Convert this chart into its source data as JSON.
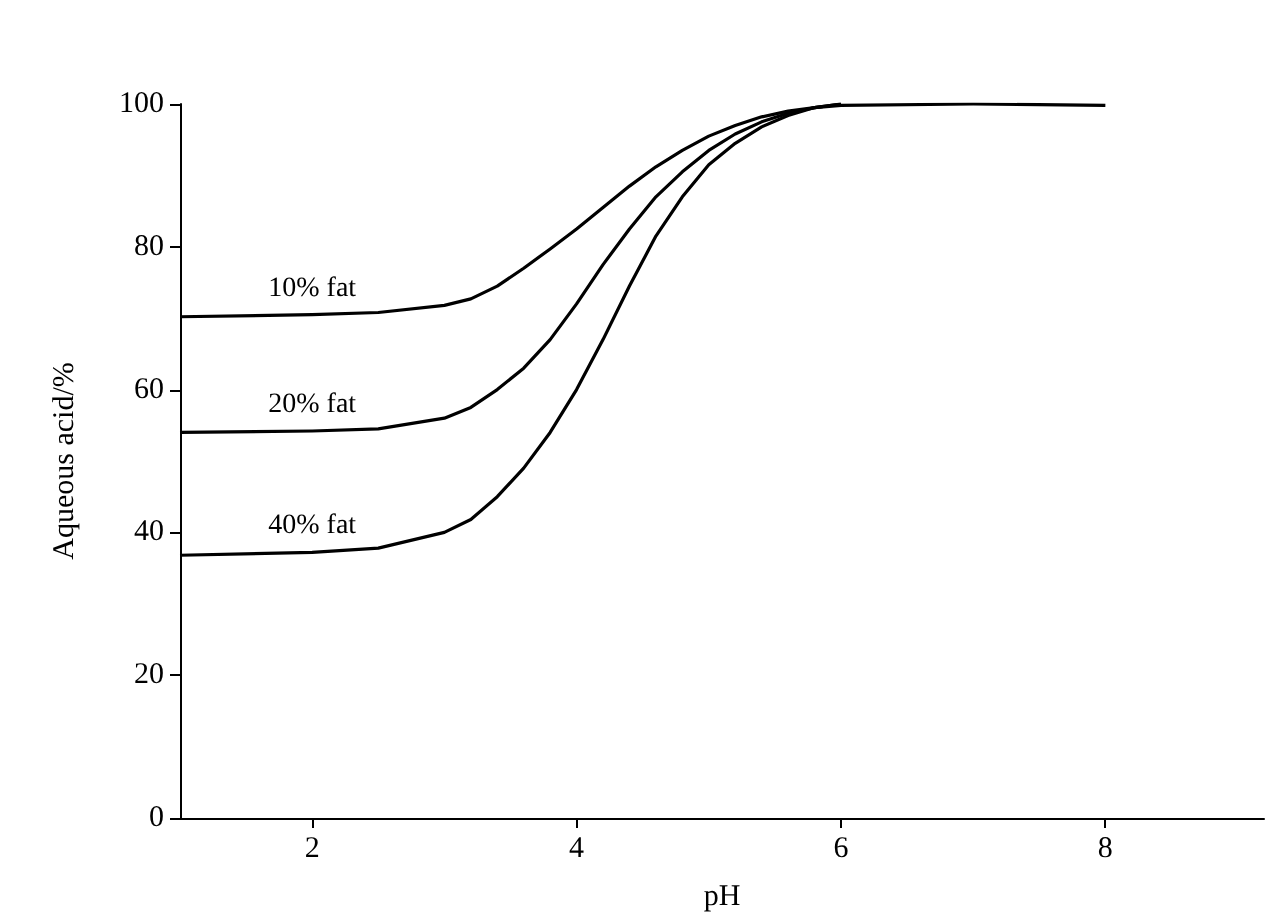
{
  "chart_data": {
    "type": "line",
    "xlabel": "pH",
    "ylabel": "Aqueous acid/%",
    "xlim": [
      1,
      9.2
    ],
    "xticks": [
      2,
      4,
      6,
      8
    ],
    "ylim": [
      0,
      100
    ],
    "yticks": [
      0,
      20,
      40,
      60,
      80,
      100
    ],
    "grid": false,
    "marker": "none",
    "line_style": "solid",
    "series": [
      {
        "name": "10% fat",
        "color": "#000000",
        "x": [
          1,
          2,
          2.5,
          3,
          3.2,
          3.4,
          3.6,
          3.8,
          4,
          4.2,
          4.4,
          4.6,
          4.8,
          5,
          5.2,
          5.4,
          5.6,
          5.8,
          6,
          7,
          8
        ],
        "values": [
          70.2,
          70.5,
          70.8,
          71.8,
          72.7,
          74.5,
          77,
          79.7,
          82.5,
          85.5,
          88.5,
          91.2,
          93.5,
          95.5,
          97,
          98.2,
          99,
          99.5,
          99.8,
          100,
          99.8
        ]
      },
      {
        "name": "20% fat",
        "color": "#000000",
        "x": [
          1,
          2,
          2.5,
          3,
          3.2,
          3.4,
          3.6,
          3.8,
          4,
          4.2,
          4.4,
          4.6,
          4.8,
          5,
          5.2,
          5.4,
          5.6,
          5.8,
          6
        ],
        "values": [
          54,
          54.2,
          54.5,
          56,
          57.5,
          60,
          63,
          67,
          72,
          77.5,
          82.5,
          87,
          90.5,
          93.5,
          95.8,
          97.5,
          98.7,
          99.5,
          100
        ]
      },
      {
        "name": "40% fat",
        "color": "#000000",
        "x": [
          1,
          2,
          2.5,
          3,
          3.2,
          3.4,
          3.6,
          3.8,
          4,
          4.2,
          4.4,
          4.6,
          4.8,
          5,
          5.2,
          5.4,
          5.6,
          5.8,
          6
        ],
        "values": [
          36.8,
          37.2,
          37.8,
          40,
          41.8,
          45,
          49,
          54,
          60,
          67,
          74.5,
          81.5,
          87,
          91.5,
          94.5,
          96.8,
          98.4,
          99.5,
          100
        ]
      }
    ]
  }
}
